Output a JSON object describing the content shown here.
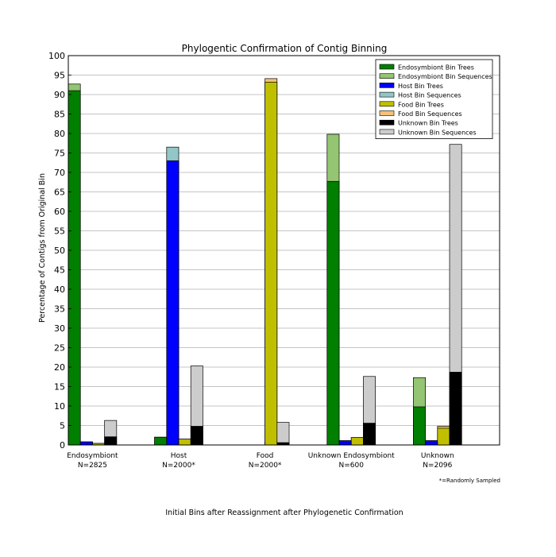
{
  "chart_data": {
    "type": "bar",
    "stacked_pairs": true,
    "title": "Phylogentic Confirmation of Contig Binning",
    "xlabel": "Initial Bins after Reassignment after Phylogenetic Confirmation",
    "ylabel": "Percentage of Contigs from Original Bin",
    "footnote": "*=Randomly Sampled",
    "ylim": [
      0,
      100
    ],
    "yticks": [
      0,
      5,
      10,
      15,
      20,
      25,
      30,
      35,
      40,
      45,
      50,
      55,
      60,
      65,
      70,
      75,
      80,
      85,
      90,
      95,
      100
    ],
    "grid": "horizontal",
    "legend_position": "top-right",
    "categories": [
      {
        "name": "Endosymbiont",
        "n": "N=2825"
      },
      {
        "name": "Host",
        "n": "N=2000*"
      },
      {
        "name": "Food",
        "n": "N=2000*"
      },
      {
        "name": "Unknown Endosymbiont",
        "n": "N=600"
      },
      {
        "name": "Unknown",
        "n": "N=2096"
      }
    ],
    "groups": [
      {
        "trees_name": "Endosymbiont Bin Trees",
        "seq_name": "Endosymbiont Bin Sequences",
        "trees_color": "#007f00",
        "seq_color": "#93c572",
        "trees": [
          91.0,
          2.0,
          0.0,
          67.7,
          9.8
        ],
        "seq_total": [
          92.7,
          2.0,
          0.0,
          79.8,
          17.3
        ]
      },
      {
        "trees_name": "Host Bin Trees",
        "seq_name": "Host Bin Sequences",
        "trees_color": "#0000ff",
        "seq_color": "#93c7c7",
        "trees": [
          0.8,
          73.0,
          0.0,
          1.1,
          1.1
        ],
        "seq_total": [
          0.8,
          76.5,
          0.0,
          1.1,
          1.1
        ]
      },
      {
        "trees_name": "Food Bin Trees",
        "seq_name": "Food Bin Sequences",
        "trees_color": "#bfbf00",
        "seq_color": "#f5c07a",
        "trees": [
          0.4,
          1.5,
          93.2,
          1.9,
          4.3
        ],
        "seq_total": [
          0.4,
          1.5,
          94.1,
          1.9,
          4.8
        ]
      },
      {
        "trees_name": "Unknown Bin Trees",
        "seq_name": "Unknown Bin Sequences",
        "trees_color": "#000000",
        "seq_color": "#cccccc",
        "trees": [
          2.1,
          4.8,
          0.6,
          5.6,
          18.7
        ],
        "seq_total": [
          6.3,
          20.3,
          5.8,
          17.6,
          77.2
        ]
      }
    ]
  }
}
